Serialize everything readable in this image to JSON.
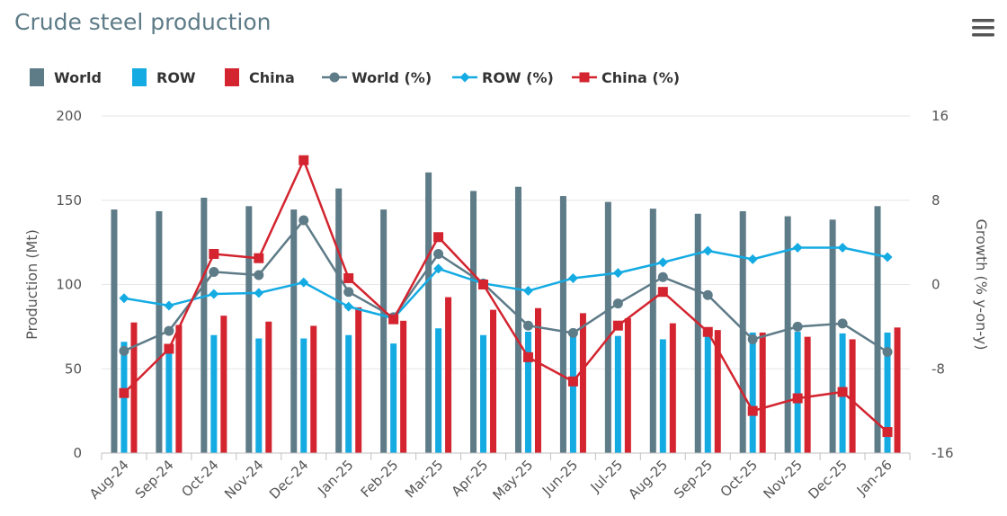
{
  "chart_data": {
    "type": "bar+line",
    "title": "Crude steel production",
    "categories": [
      "Aug-24",
      "Sep-24",
      "Oct-24",
      "Nov-24",
      "Dec-24",
      "Jan-25",
      "Feb-25",
      "Mar-25",
      "Apr-25",
      "May-25",
      "Jun-25",
      "Jul-25",
      "Aug-25",
      "Sep-25",
      "Oct-25",
      "Nov-25",
      "Dec-25",
      "Jan-26"
    ],
    "ylabel": "Production (Mt)",
    "y2label": "Growth (% y-on-y)",
    "ylim": [
      0,
      200
    ],
    "yticks": [
      0,
      50,
      100,
      150,
      200
    ],
    "y2lim": [
      -16,
      16
    ],
    "y2ticks": [
      -16,
      -8,
      0,
      8,
      16
    ],
    "bar_series": [
      {
        "name": "World",
        "color": "#5e7b88",
        "values": [
          144.5,
          143.5,
          151.5,
          146.5,
          144.5,
          157,
          144.5,
          166.5,
          155.5,
          158,
          152.5,
          149,
          145,
          142,
          143.5,
          140.5,
          138.5,
          146.5
        ]
      },
      {
        "name": "ROW",
        "color": "#14abe3",
        "values": [
          66,
          62,
          70,
          68,
          68,
          70,
          65,
          74,
          70,
          72,
          70,
          69.5,
          67.5,
          70,
          71.5,
          72,
          71,
          71.5
        ]
      },
      {
        "name": "China",
        "color": "#d3242f",
        "values": [
          77.5,
          76,
          81.5,
          78,
          75.5,
          86.5,
          78.5,
          92.5,
          85,
          86,
          83,
          80,
          77,
          73,
          71.5,
          69,
          67.5,
          74.5
        ]
      }
    ],
    "line_series": [
      {
        "name": "World (%)",
        "color": "#5e7b88",
        "marker": "circle",
        "values": [
          -6.3,
          -4.4,
          1.2,
          0.9,
          6.1,
          -0.7,
          -3.1,
          2.9,
          0.1,
          -3.9,
          -4.6,
          -1.8,
          0.7,
          -1.0,
          -5.2,
          -4.0,
          -3.7,
          -6.4
        ]
      },
      {
        "name": "ROW (%)",
        "color": "#14abe3",
        "marker": "diamond",
        "values": [
          -1.3,
          -2.0,
          -0.9,
          -0.8,
          0.2,
          -2.1,
          -3.2,
          1.5,
          0.1,
          -0.6,
          0.6,
          1.1,
          2.1,
          3.2,
          2.4,
          3.5,
          3.5,
          2.6
        ]
      },
      {
        "name": "China (%)",
        "color": "#d3242f",
        "marker": "square",
        "values": [
          -10.3,
          -6.1,
          2.9,
          2.5,
          11.8,
          0.6,
          -3.3,
          4.5,
          0.0,
          -6.9,
          -9.2,
          -3.9,
          -0.7,
          -4.5,
          -12.0,
          -10.8,
          -10.2,
          -14.0
        ]
      }
    ]
  }
}
